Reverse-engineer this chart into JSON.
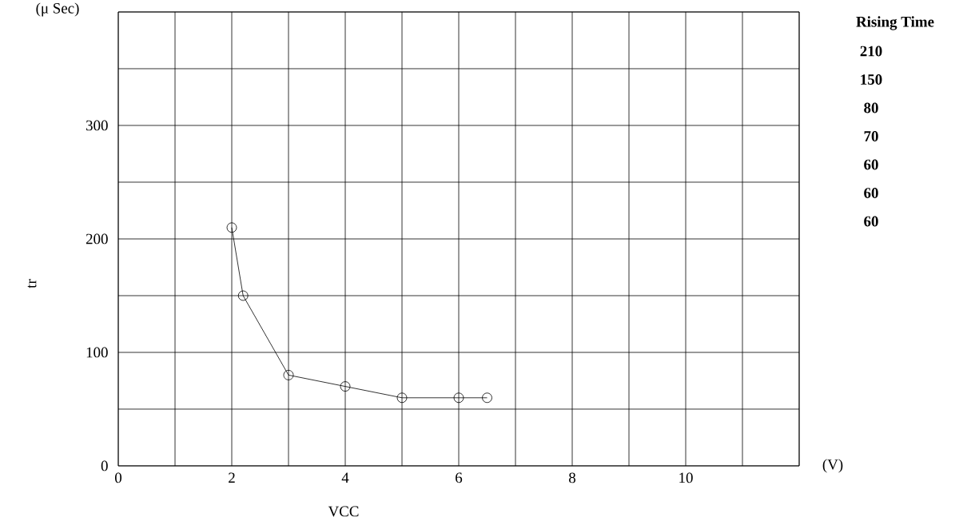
{
  "chart_data": {
    "type": "line",
    "xlabel": "VCC",
    "ylabel": "tr",
    "annotations": [
      "(μ Sec)",
      "(V)",
      "Rising Time",
      "210",
      "150",
      "80",
      "70",
      "60",
      "60",
      "60"
    ],
    "x": [
      2,
      2.2,
      3,
      4,
      5,
      6,
      6.5
    ],
    "series": [
      {
        "color": "#000000",
        "values": [
          210,
          150,
          80,
          70,
          60,
          60,
          60
        ]
      }
    ],
    "xlim": [
      0,
      12
    ],
    "xticks": [
      0,
      {
        "value": 1,
        "label": null
      },
      2,
      {
        "value": 3,
        "label": null
      },
      4,
      {
        "value": 5,
        "label": null
      },
      6,
      {
        "value": 7,
        "label": null
      },
      8,
      {
        "value": 9,
        "label": null
      },
      10,
      {
        "value": 11,
        "label": null
      },
      {
        "value": 12,
        "label": null
      }
    ],
    "ylim": [
      0,
      400
    ],
    "yticks": [
      0,
      {
        "value": 50,
        "label": null
      },
      100,
      {
        "value": 150,
        "label": null
      },
      200,
      {
        "value": 250,
        "label": null
      },
      300,
      {
        "value": 350,
        "label": null
      },
      {
        "value": 400,
        "label": null
      }
    ],
    "grid": true,
    "marker": "circle",
    "line_style": "solid"
  }
}
